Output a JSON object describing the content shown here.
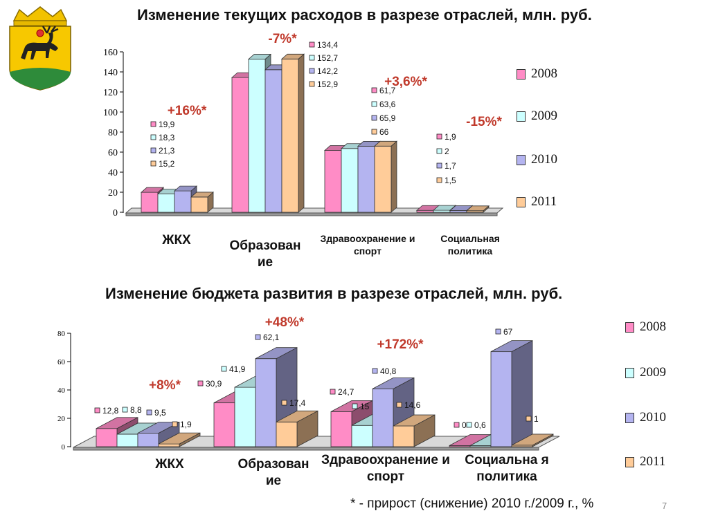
{
  "slide": {
    "number": "7",
    "footnote": "* - прирост (снижение) 2010 г./2009 г., %"
  },
  "emblem": {
    "icon": "moose-coat-of-arms-icon"
  },
  "colors": {
    "2008": "#ff8cc6",
    "2009": "#ccffff",
    "2010": "#b4b4f0",
    "2011": "#ffcc99",
    "change": "#c0392b"
  },
  "chart_data": [
    {
      "type": "bar",
      "title": "Изменение текущих расходов в разрезе отраслей, млн. руб.",
      "categories": [
        "ЖКХ",
        "Образование",
        "Здравоохранение и спорт",
        "Социальная политика"
      ],
      "category_labels": [
        "ЖКХ",
        "Образован ие",
        "Здравоохранение и спорт",
        "Социальная политика"
      ],
      "series": [
        {
          "name": "2008",
          "values": [
            19.9,
            134.4,
            61.7,
            1.9
          ]
        },
        {
          "name": "2009",
          "values": [
            18.3,
            152.7,
            63.6,
            2
          ]
        },
        {
          "name": "2010",
          "values": [
            21.3,
            142.2,
            65.9,
            1.7
          ]
        },
        {
          "name": "2011",
          "values": [
            15.2,
            152.9,
            66,
            1.5
          ]
        }
      ],
      "data_labels": [
        [
          "19,9",
          "18,3",
          "21,3",
          "15,2"
        ],
        [
          "134,4",
          "152,7",
          "142,2",
          "152,9"
        ],
        [
          "61,7",
          "63,6",
          "65,9",
          "66"
        ],
        [
          "1,9",
          "2",
          "1,7",
          "1,5"
        ]
      ],
      "change_labels": [
        "+16%*",
        "-7%*",
        "+3,6%*",
        "-15%*"
      ],
      "ylim": [
        0,
        160
      ],
      "yticks": [
        0,
        20,
        40,
        60,
        80,
        100,
        120,
        140,
        160
      ],
      "legend": [
        "2008",
        "2009",
        "2010",
        "2011"
      ],
      "legend_position": "right",
      "grid": false
    },
    {
      "type": "bar",
      "title": "Изменение бюджета развития в разрезе отраслей, млн. руб.",
      "categories": [
        "ЖКХ",
        "Образование",
        "Здравоохранение и спорт",
        "Социальная политика"
      ],
      "category_labels": [
        "ЖКХ",
        "Образован ие",
        "Здравоохранение и спорт",
        "Социальна я политика"
      ],
      "series": [
        {
          "name": "2008",
          "values": [
            12.8,
            30.9,
            24.7,
            0
          ]
        },
        {
          "name": "2009",
          "values": [
            8.8,
            41.9,
            15,
            0.6
          ]
        },
        {
          "name": "2010",
          "values": [
            9.5,
            62.1,
            40.8,
            67
          ]
        },
        {
          "name": "2011",
          "values": [
            1.9,
            17.4,
            14.6,
            1
          ]
        }
      ],
      "data_labels": [
        [
          "12,8",
          "8,8",
          "9,5",
          "1,9"
        ],
        [
          "30,9",
          "41,9",
          "62,1",
          "17,4"
        ],
        [
          "24,7",
          "15",
          "40,8",
          "14,6"
        ],
        [
          "0",
          "0,6",
          "67",
          "1"
        ]
      ],
      "change_labels": [
        "+8%*",
        "+48%*",
        "+172%*",
        ""
      ],
      "ylim": [
        0,
        80
      ],
      "yticks": [
        0,
        20,
        40,
        60,
        80
      ],
      "legend": [
        "2008",
        "2009",
        "2010",
        "2011"
      ],
      "legend_position": "right",
      "grid": false
    }
  ]
}
